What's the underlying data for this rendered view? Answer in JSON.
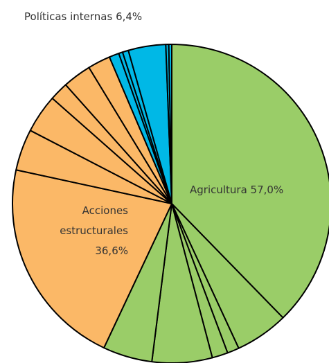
{
  "chart_data": {
    "type": "pie",
    "start_angle_deg": 0,
    "direction": "clockwise",
    "colors": {
      "agriculture": "#9acd68",
      "structural": "#fbb867",
      "internal": "#00b8e6",
      "outline": "#000000"
    },
    "labels": {
      "agriculture": "Agricultura 57,0%",
      "structural_line1": "Acciones",
      "structural_line2": "estructurales",
      "structural_line3": "36,6%",
      "internal": "Políticas internas 6,4%"
    },
    "groups": [
      {
        "key": "agriculture",
        "value": 57.0
      },
      {
        "key": "structural",
        "value": 36.6
      },
      {
        "key": "internal",
        "value": 6.4
      }
    ],
    "slices": [
      {
        "group": "agriculture",
        "value": 37.7
      },
      {
        "group": "agriculture",
        "value": 5.4
      },
      {
        "group": "agriculture",
        "value": 1.2
      },
      {
        "group": "agriculture",
        "value": 1.6
      },
      {
        "group": "agriculture",
        "value": 6.1
      },
      {
        "group": "agriculture",
        "value": 5.0
      },
      {
        "group": "structural",
        "value": 21.4
      },
      {
        "group": "structural",
        "value": 4.2
      },
      {
        "group": "structural",
        "value": 3.9
      },
      {
        "group": "structural",
        "value": 1.9
      },
      {
        "group": "structural",
        "value": 2.9
      },
      {
        "group": "structural",
        "value": 2.3
      },
      {
        "group": "internal",
        "value": 1.0
      },
      {
        "group": "internal",
        "value": 0.4
      },
      {
        "group": "internal",
        "value": 0.6
      },
      {
        "group": "internal",
        "value": 3.8
      },
      {
        "group": "internal",
        "value": 0.3
      },
      {
        "group": "internal",
        "value": 0.3
      }
    ]
  }
}
